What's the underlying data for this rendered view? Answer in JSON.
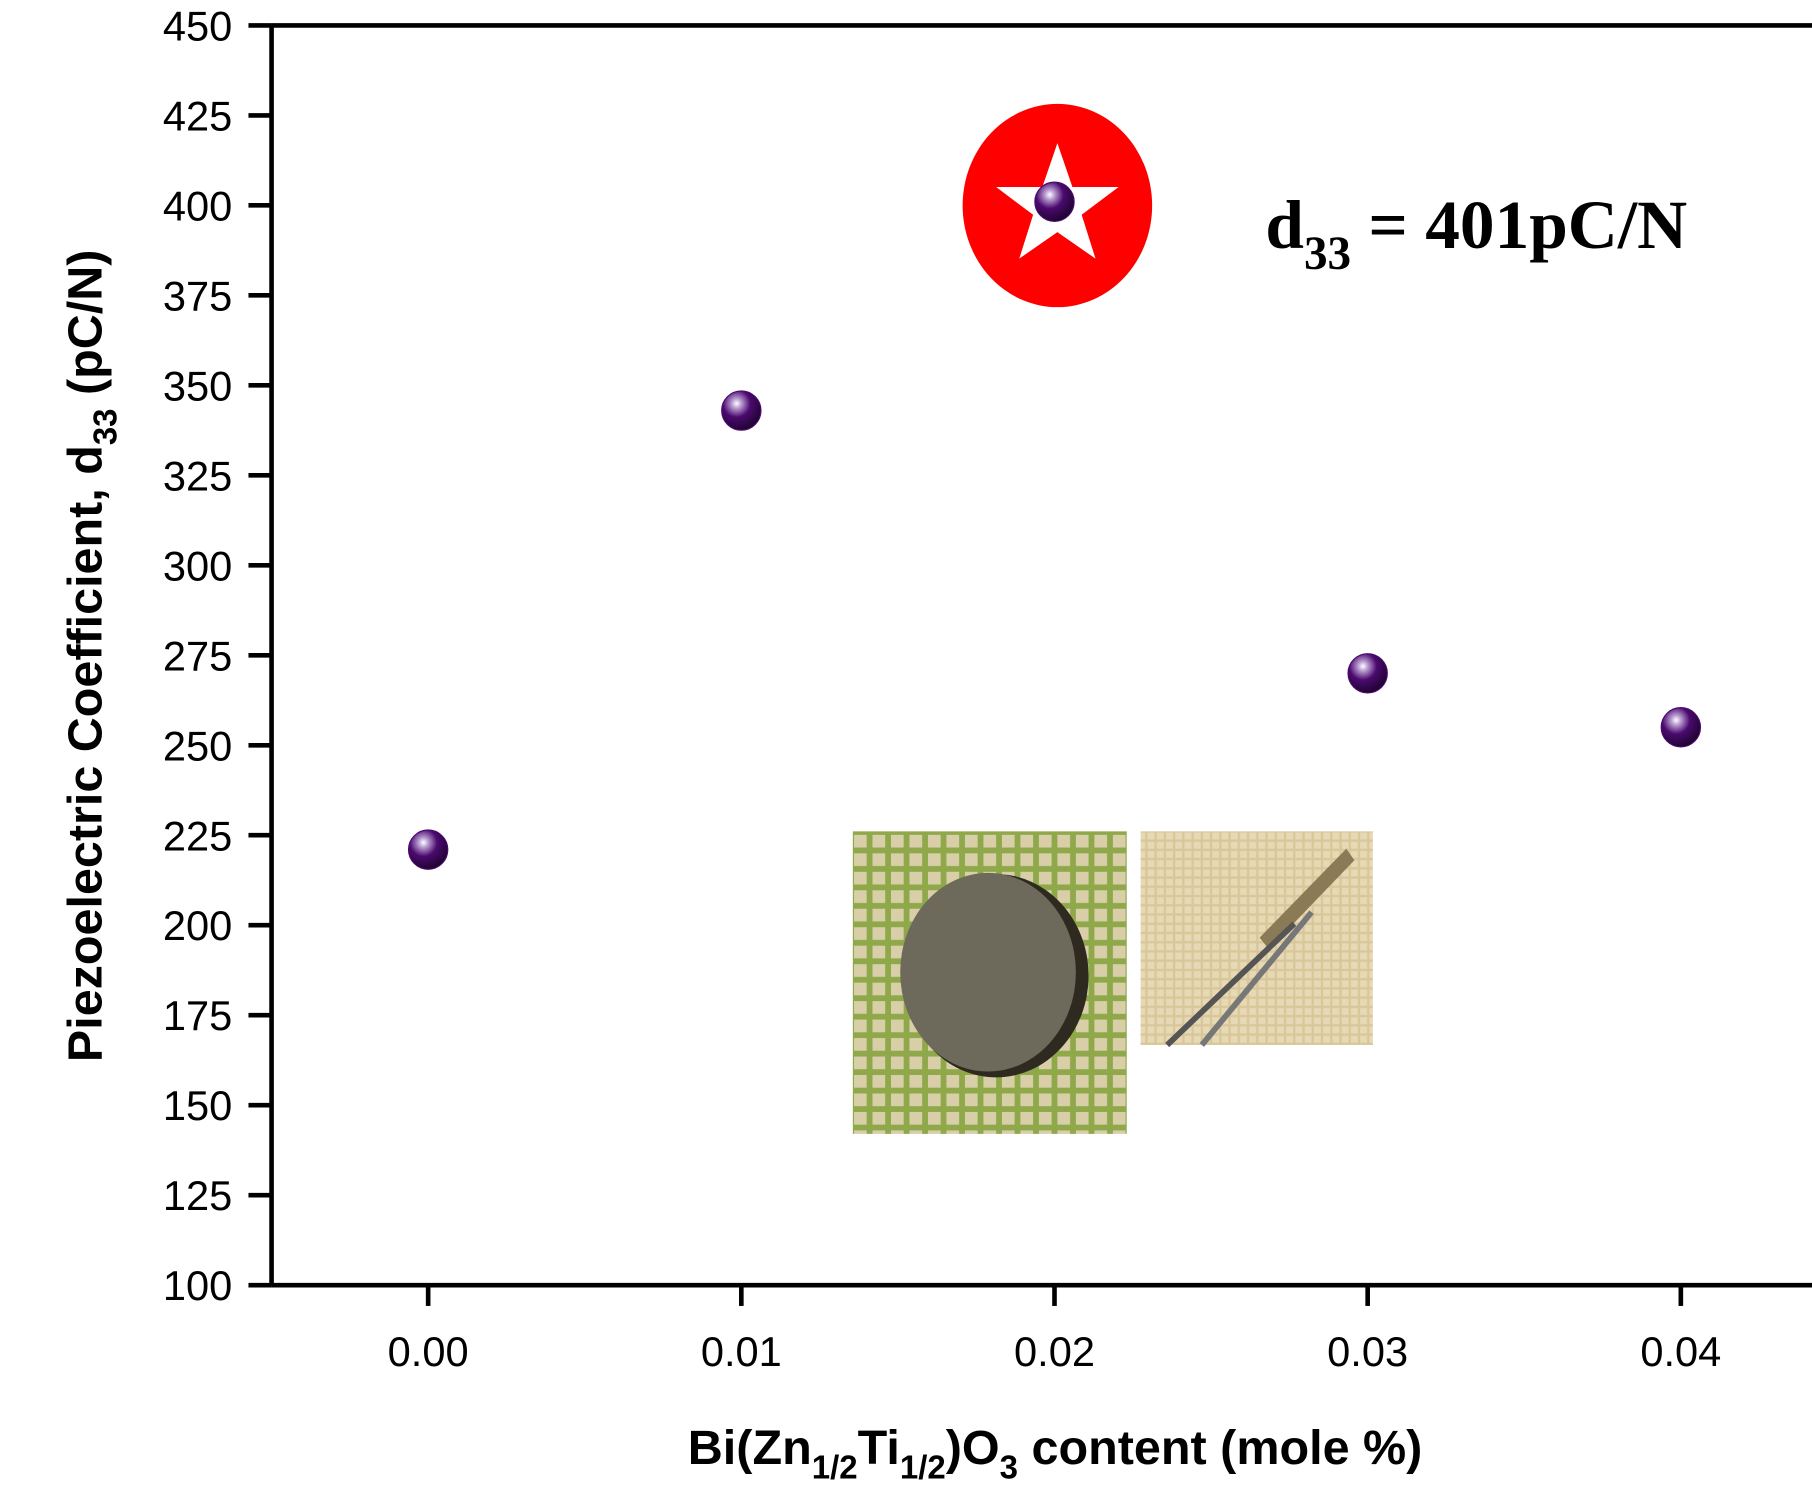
{
  "chart_data": {
    "type": "scatter",
    "x": [
      0,
      0.01,
      0.02,
      0.03,
      0.04
    ],
    "series": [
      {
        "color": "#4b0a6e",
        "values": [
          221,
          343,
          401,
          270,
          255
        ]
      }
    ],
    "xlim": [
      -0.005,
      0.045
    ],
    "ylim": [
      100,
      450
    ],
    "xticks": [
      {
        "value": 0,
        "label": "0.00"
      },
      0.01,
      0.02,
      0.03,
      0.04
    ],
    "yticks": [
      100,
      125,
      150,
      175,
      200,
      225,
      250,
      275,
      300,
      325,
      350,
      375,
      400,
      425,
      450
    ],
    "y_label": [
      {
        "text": "Piezoelectric Coefficient, d"
      },
      {
        "text": "33",
        "sub": true
      },
      {
        "text": " (pC/N)"
      }
    ],
    "x_label": [
      {
        "text": "Bi(Zn"
      },
      {
        "text": "1/2",
        "sub": true
      },
      {
        "text": "Ti"
      },
      {
        "text": "1/2",
        "sub": true
      },
      {
        "text": ")O"
      },
      {
        "text": "3",
        "sub": true
      },
      {
        "text": " content (mole %)"
      }
    ],
    "annotation": [
      {
        "text": "d"
      },
      {
        "text": "33",
        "sub": true
      },
      {
        "text": " = 401pC/N"
      }
    ]
  }
}
